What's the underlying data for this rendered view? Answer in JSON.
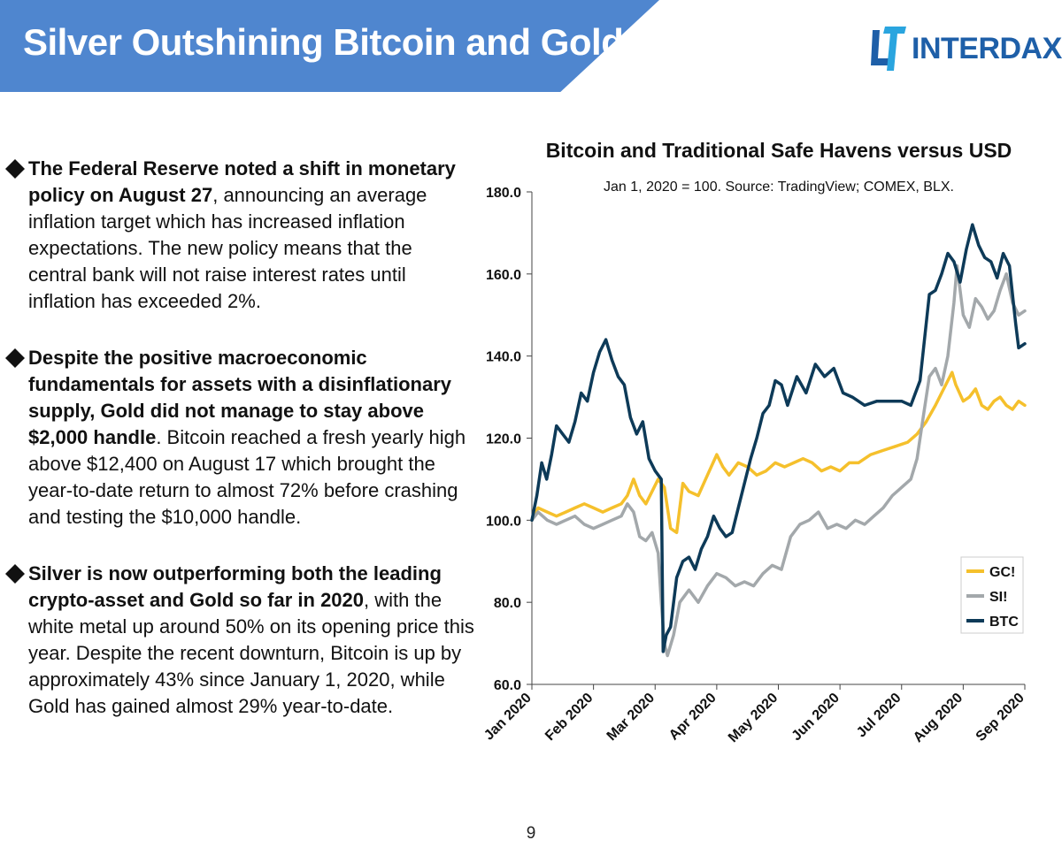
{
  "header": {
    "title": "Silver Outshining Bitcoin and Gold"
  },
  "logo": {
    "text": "INTERDAX"
  },
  "bullets": [
    {
      "bold": "The Federal Reserve noted a shift in monetary policy on August 27",
      "rest": ", announcing an average inflation target which has increased inflation expectations. The new policy means that the central bank will not raise interest rates until inflation has exceeded 2%."
    },
    {
      "bold": "Despite the positive macroeconomic fundamentals for assets with a disinflationary supply, Gold did not manage to stay above $2,000 handle",
      "rest": ". Bitcoin reached a fresh yearly high above $12,400 on August 17 which brought the year-to-date return to almost 72% before crashing and testing the $10,000 handle."
    },
    {
      "bold": "Silver is now outperforming both the leading crypto-asset and Gold so far in 2020",
      "rest": ", with the white metal up around 50% on its opening price this year. Despite the recent downturn, Bitcoin is up by approximately 43% since January 1, 2020, while Gold has gained almost 29% year-to-date."
    }
  ],
  "page_number": "9",
  "colors": {
    "banner": "#4f86cf",
    "gold": "#f5c02c",
    "silver": "#a3a8ab",
    "bitcoin": "#0d3a58",
    "logo": "#1e5fa8"
  },
  "chart_data": {
    "type": "line",
    "title": "Bitcoin and Traditional Safe Havens versus USD",
    "subtitle": "Jan 1, 2020 = 100. Source: TradingView; COMEX, BLX.",
    "x_tick_labels": [
      "Jan 2020",
      "Feb 2020",
      "Mar 2020",
      "Apr 2020",
      "May 2020",
      "Jun 2020",
      "Jul 2020",
      "Aug 2020",
      "Sep 2020"
    ],
    "y_tick_labels": [
      "60.0",
      "80.0",
      "100.0",
      "120.0",
      "140.0",
      "160.0",
      "180.0"
    ],
    "ylim": [
      60,
      180
    ],
    "x_range_months": [
      0,
      8
    ],
    "legend_position": "bottom-right",
    "grid": false,
    "series": [
      {
        "name": "GC!",
        "color": "#f5c02c",
        "x": [
          0,
          0.1,
          0.25,
          0.4,
          0.55,
          0.7,
          0.85,
          1.0,
          1.15,
          1.3,
          1.45,
          1.55,
          1.65,
          1.75,
          1.85,
          1.95,
          2.05,
          2.15,
          2.25,
          2.35,
          2.45,
          2.55,
          2.7,
          2.85,
          3.0,
          3.1,
          3.2,
          3.35,
          3.5,
          3.65,
          3.8,
          3.95,
          4.1,
          4.25,
          4.4,
          4.55,
          4.7,
          4.85,
          5.0,
          5.15,
          5.3,
          5.5,
          5.7,
          5.9,
          6.1,
          6.25,
          6.4,
          6.55,
          6.65,
          6.75,
          6.82,
          6.88,
          7.0,
          7.1,
          7.2,
          7.3,
          7.4,
          7.5,
          7.6,
          7.7,
          7.8,
          7.9,
          8.0
        ],
        "y": [
          100,
          103,
          102,
          101,
          102,
          103,
          104,
          103,
          102,
          103,
          104,
          106,
          110,
          106,
          104,
          107,
          110,
          108,
          98,
          97,
          109,
          107,
          106,
          111,
          116,
          113,
          111,
          114,
          113,
          111,
          112,
          114,
          113,
          114,
          115,
          114,
          112,
          113,
          112,
          114,
          114,
          116,
          117,
          118,
          119,
          121,
          124,
          128,
          131,
          134,
          136,
          133,
          129,
          130,
          132,
          128,
          127,
          129,
          130,
          128,
          127,
          129,
          128
        ]
      },
      {
        "name": "SI!",
        "color": "#a3a8ab",
        "x": [
          0,
          0.1,
          0.25,
          0.4,
          0.55,
          0.7,
          0.85,
          1.0,
          1.15,
          1.3,
          1.45,
          1.55,
          1.65,
          1.75,
          1.85,
          1.95,
          2.05,
          2.1,
          2.15,
          2.2,
          2.3,
          2.4,
          2.55,
          2.7,
          2.85,
          3.0,
          3.15,
          3.3,
          3.45,
          3.6,
          3.75,
          3.9,
          4.05,
          4.2,
          4.35,
          4.5,
          4.65,
          4.8,
          4.95,
          5.1,
          5.25,
          5.4,
          5.55,
          5.7,
          5.85,
          6.0,
          6.15,
          6.25,
          6.35,
          6.45,
          6.55,
          6.65,
          6.75,
          6.85,
          6.9,
          7.0,
          7.1,
          7.2,
          7.3,
          7.4,
          7.5,
          7.6,
          7.7,
          7.8,
          7.9,
          8.0
        ],
        "y": [
          100,
          102,
          100,
          99,
          100,
          101,
          99,
          98,
          99,
          100,
          101,
          104,
          102,
          96,
          95,
          97,
          92,
          80,
          70,
          67,
          72,
          80,
          83,
          80,
          84,
          87,
          86,
          84,
          85,
          84,
          87,
          89,
          88,
          96,
          99,
          100,
          102,
          98,
          99,
          98,
          100,
          99,
          101,
          103,
          106,
          108,
          110,
          115,
          125,
          135,
          137,
          133,
          140,
          153,
          162,
          150,
          147,
          154,
          152,
          149,
          151,
          156,
          160,
          153,
          150,
          151
        ]
      },
      {
        "name": "BTC",
        "color": "#0d3a58",
        "x": [
          0,
          0.08,
          0.16,
          0.24,
          0.32,
          0.4,
          0.5,
          0.6,
          0.7,
          0.8,
          0.9,
          1.0,
          1.1,
          1.2,
          1.3,
          1.4,
          1.5,
          1.6,
          1.7,
          1.8,
          1.9,
          2.0,
          2.1,
          2.13,
          2.18,
          2.25,
          2.35,
          2.45,
          2.55,
          2.65,
          2.75,
          2.85,
          2.95,
          3.05,
          3.15,
          3.25,
          3.35,
          3.45,
          3.55,
          3.65,
          3.75,
          3.85,
          3.95,
          4.05,
          4.15,
          4.3,
          4.45,
          4.6,
          4.75,
          4.9,
          5.05,
          5.2,
          5.4,
          5.6,
          5.8,
          6.0,
          6.15,
          6.3,
          6.45,
          6.55,
          6.65,
          6.75,
          6.85,
          6.95,
          7.05,
          7.15,
          7.25,
          7.35,
          7.45,
          7.55,
          7.65,
          7.75,
          7.85,
          7.9,
          8.0
        ],
        "y": [
          100,
          106,
          114,
          110,
          116,
          123,
          121,
          119,
          124,
          131,
          129,
          136,
          141,
          144,
          139,
          135,
          133,
          125,
          121,
          124,
          115,
          112,
          110,
          68,
          72,
          74,
          86,
          90,
          91,
          88,
          93,
          96,
          101,
          98,
          96,
          97,
          103,
          109,
          115,
          120,
          126,
          128,
          134,
          133,
          128,
          135,
          131,
          138,
          135,
          137,
          131,
          130,
          128,
          129,
          129,
          129,
          128,
          134,
          155,
          156,
          160,
          165,
          163,
          158,
          166,
          172,
          167,
          164,
          163,
          159,
          165,
          162,
          148,
          142,
          143
        ]
      }
    ]
  }
}
